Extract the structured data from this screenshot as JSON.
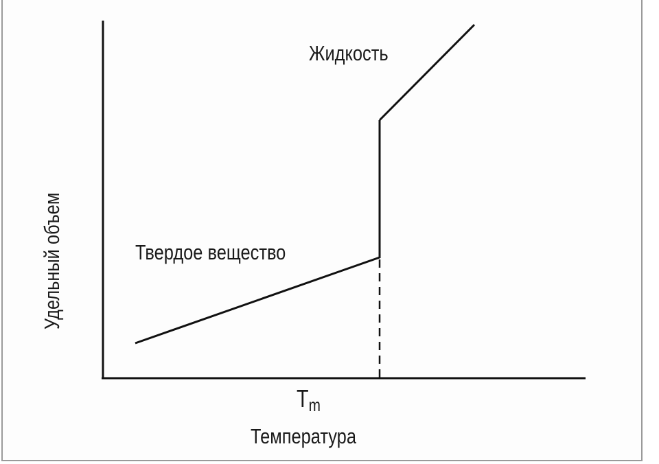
{
  "diagram": {
    "y_axis_label": "Удельный объем",
    "x_axis_label": "Температура",
    "x_marker_label": "T",
    "x_marker_subscript": "m",
    "liquid_label": "Жидкость",
    "solid_label": "Твердое вещество",
    "line_color": "#111111"
  }
}
